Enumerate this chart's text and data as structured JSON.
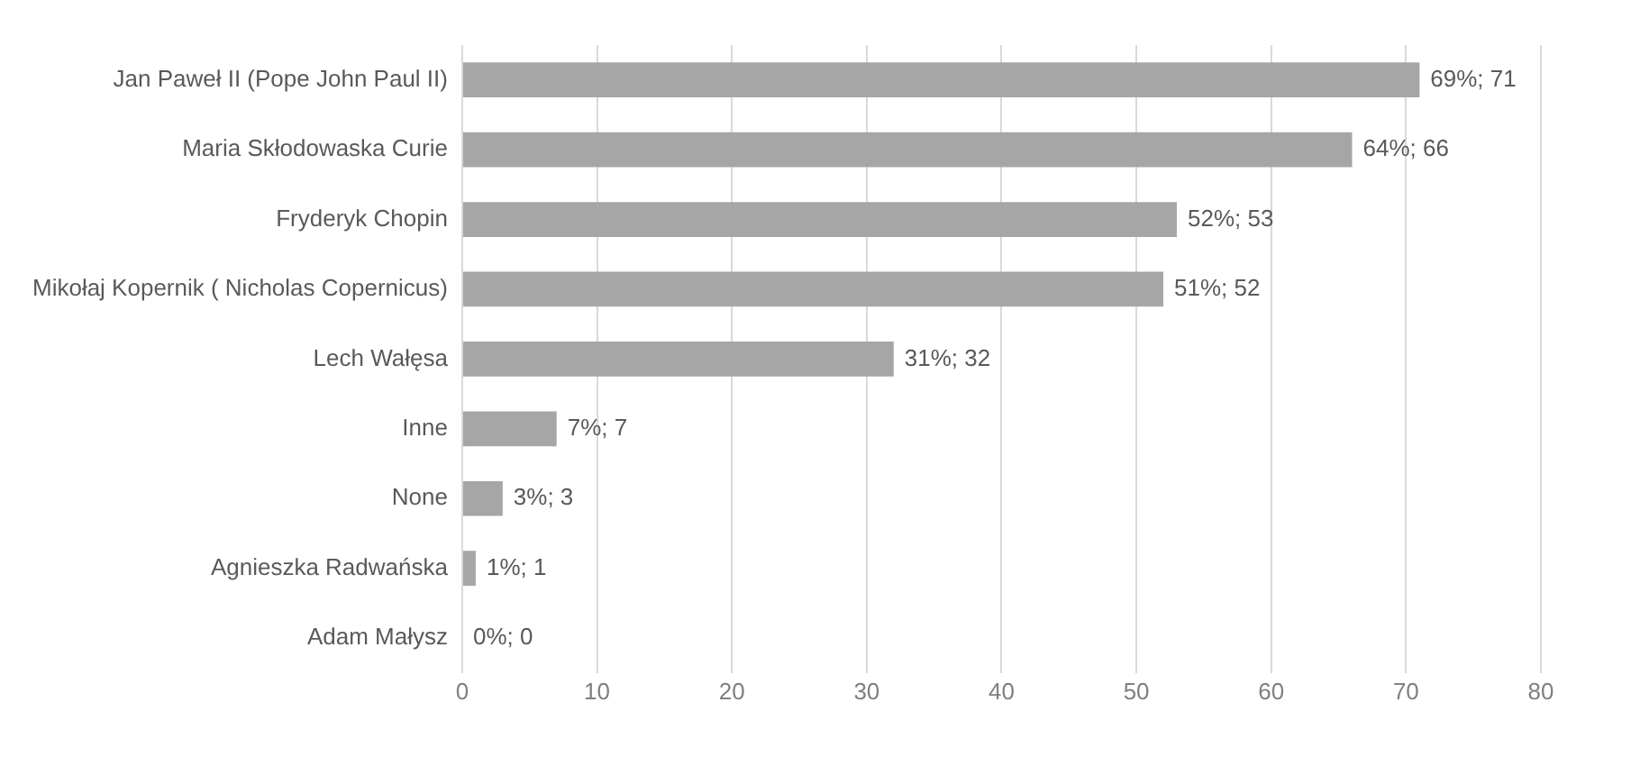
{
  "chart_data": {
    "type": "bar",
    "orientation": "horizontal",
    "categories": [
      "Jan Paweł II (Pope John Paul II)",
      "Maria Skłodowaska Curie",
      "Fryderyk Chopin",
      "Mikołaj Kopernik ( Nicholas Copernicus)",
      "Lech Wałęsa",
      "Inne",
      "None",
      "Agnieszka Radwańska",
      "Adam Małysz"
    ],
    "values": [
      71,
      66,
      53,
      52,
      32,
      7,
      3,
      1,
      0
    ],
    "value_labels": [
      "69%; 71",
      "64%; 66",
      "52%; 53",
      "51%; 52",
      "31%; 32",
      "7%; 7",
      "3%; 3",
      "1%; 1",
      "0%; 0"
    ],
    "color": "#a6a6a6",
    "xlim": [
      0,
      80
    ],
    "xticks": [
      0,
      10,
      20,
      30,
      40,
      50,
      60,
      70,
      80
    ],
    "grid": "x",
    "legend": false
  }
}
